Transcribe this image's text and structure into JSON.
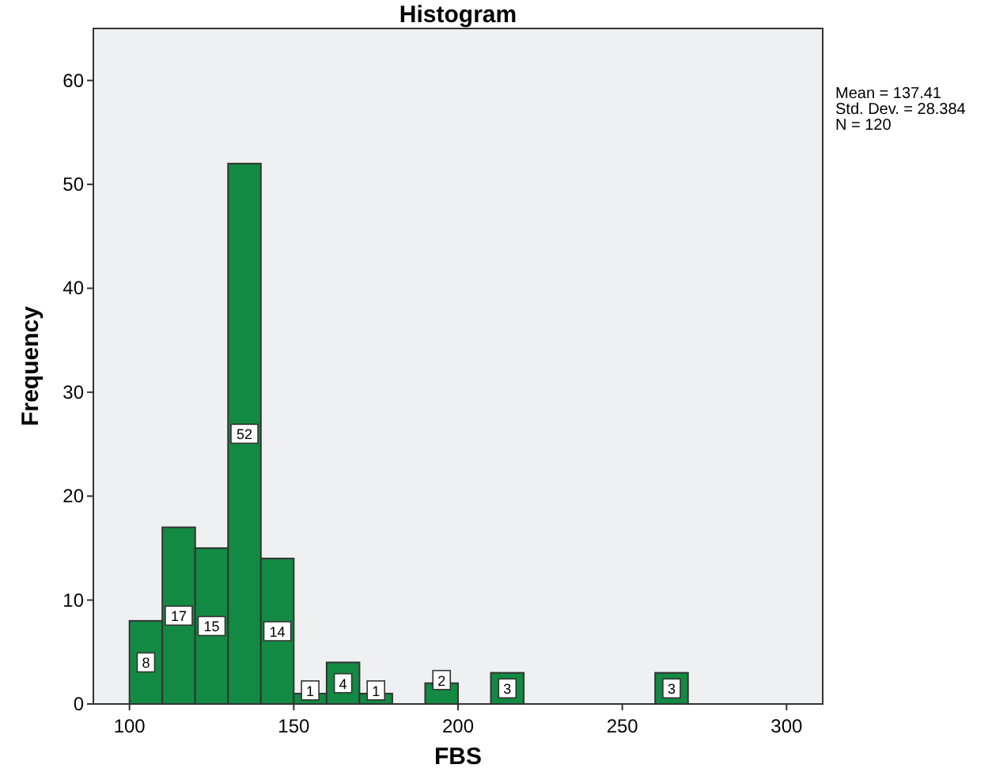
{
  "chart_data": {
    "type": "histogram",
    "title": "Histogram",
    "xlabel": "FBS",
    "ylabel": "Frequency",
    "bins": [
      100,
      110,
      120,
      130,
      140,
      150,
      160,
      170,
      180,
      190,
      200,
      210,
      220,
      230,
      240,
      250,
      260,
      270
    ],
    "values": [
      8,
      17,
      15,
      52,
      14,
      1,
      4,
      1,
      0,
      2,
      0,
      3,
      0,
      0,
      0,
      0,
      3
    ],
    "value_labels": [
      "8",
      "17",
      "15",
      "52",
      "14",
      "1",
      "4",
      "1",
      null,
      "2",
      null,
      "3",
      null,
      null,
      null,
      null,
      "3"
    ],
    "color": "#138a43",
    "xlim": [
      89,
      311
    ],
    "xticks": [
      100,
      150,
      200,
      250,
      300
    ],
    "ylim": [
      0,
      65
    ],
    "yticks": [
      0,
      10,
      20,
      30,
      40,
      50,
      60
    ],
    "grid": false,
    "annotations": [
      "Mean = 137.41",
      "Std. Dev. = 28.384",
      "N = 120"
    ]
  }
}
